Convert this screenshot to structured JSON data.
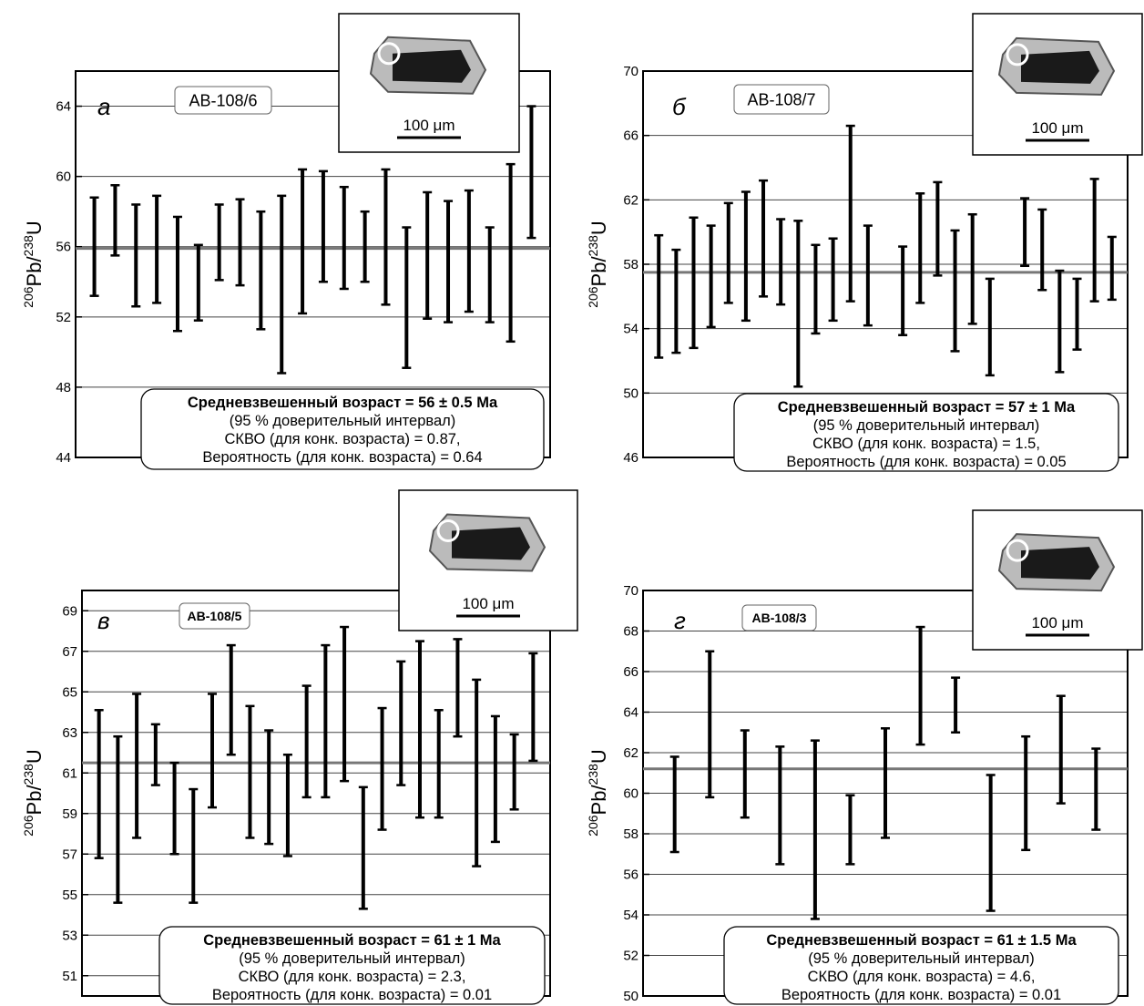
{
  "chart_data": [
    {
      "type": "range",
      "panel": "а",
      "sample": "АВ-108/6",
      "ylabel": [
        "206",
        "Pb/",
        "238",
        "U"
      ],
      "ylim": [
        44,
        66
      ],
      "yticks": [
        44,
        48,
        52,
        56,
        60,
        64
      ],
      "grid": true,
      "color": "#000000",
      "mean_color": "#777777",
      "intervals": [
        [
          53.2,
          58.8
        ],
        [
          55.5,
          59.5
        ],
        [
          52.6,
          58.4
        ],
        [
          52.8,
          58.9
        ],
        [
          51.2,
          57.7
        ],
        [
          51.8,
          56.1
        ],
        [
          54.1,
          58.4
        ],
        [
          53.8,
          58.7
        ],
        [
          51.3,
          58.0
        ],
        [
          48.8,
          58.9
        ],
        [
          52.2,
          60.4
        ],
        [
          54.0,
          60.3
        ],
        [
          53.6,
          59.4
        ],
        [
          54.0,
          58.0
        ],
        [
          52.7,
          60.4
        ],
        [
          49.1,
          57.1
        ],
        [
          51.9,
          59.1
        ],
        [
          51.7,
          58.6
        ],
        [
          52.3,
          59.2
        ],
        [
          51.7,
          57.1
        ],
        [
          50.6,
          60.7
        ],
        [
          56.5,
          64.0
        ]
      ],
      "mean": 55.9,
      "box_lines": [
        "Средневзвешенный возраст = 56 ± 0.5 Ma",
        "(95 % доверительный интервал)",
        "СКВО (для конк. возраста) = 0.87,",
        "Вероятность (для конк. возраста) = 0.64"
      ],
      "scale_label": "100 μm"
    },
    {
      "type": "range",
      "panel": "б",
      "sample": "АВ-108/7",
      "ylabel": [
        "206",
        "Pb/",
        "238",
        "U"
      ],
      "ylim": [
        46,
        70
      ],
      "yticks": [
        46,
        50,
        54,
        58,
        62,
        66,
        70
      ],
      "grid": true,
      "color": "#000000",
      "mean_color": "#777777",
      "intervals": [
        [
          52.2,
          59.8
        ],
        [
          52.5,
          58.9
        ],
        [
          52.8,
          60.9
        ],
        [
          54.1,
          60.4
        ],
        [
          55.6,
          61.8
        ],
        [
          54.5,
          62.5
        ],
        [
          56.0,
          63.2
        ],
        [
          55.5,
          60.8
        ],
        [
          50.4,
          60.7
        ],
        [
          53.7,
          59.2
        ],
        [
          54.5,
          59.6
        ],
        [
          55.7,
          66.6
        ],
        [
          54.2,
          60.4
        ],
        null,
        [
          53.6,
          59.1
        ],
        [
          55.6,
          62.4
        ],
        [
          57.3,
          63.1
        ],
        [
          52.6,
          60.1
        ],
        [
          54.3,
          61.1
        ],
        [
          51.1,
          57.1
        ],
        null,
        [
          57.9,
          62.1
        ],
        [
          56.4,
          61.4
        ],
        [
          51.3,
          57.6
        ],
        [
          52.7,
          57.1
        ],
        [
          55.7,
          63.3
        ],
        [
          55.8,
          59.7
        ]
      ],
      "mean": 57.5,
      "box_lines": [
        "Средневзвешенный возраст = 57 ± 1 Ma",
        "(95 % доверительный интервал)",
        "СКВО (для конк. возраста) = 1.5,",
        "Вероятность (для конк. возраста) = 0.05"
      ],
      "scale_label": "100 μm"
    },
    {
      "type": "range",
      "panel": "в",
      "sample": "АВ-108/5",
      "ylabel": [
        "206",
        "Pb/",
        "238",
        "U"
      ],
      "ylim": [
        50,
        70
      ],
      "yticks": [
        51,
        53,
        55,
        57,
        59,
        61,
        63,
        65,
        67,
        69
      ],
      "grid": true,
      "color": "#000000",
      "mean_color": "#777777",
      "intervals": [
        [
          56.8,
          64.1
        ],
        [
          54.6,
          62.8
        ],
        [
          57.8,
          64.9
        ],
        [
          60.4,
          63.4
        ],
        [
          57.0,
          61.5
        ],
        [
          54.6,
          60.2
        ],
        [
          59.3,
          64.9
        ],
        [
          61.9,
          67.3
        ],
        [
          57.8,
          64.3
        ],
        [
          57.5,
          63.1
        ],
        [
          56.9,
          61.9
        ],
        [
          59.8,
          65.3
        ],
        [
          59.8,
          67.3
        ],
        [
          60.6,
          68.2
        ],
        [
          54.3,
          60.3
        ],
        [
          58.2,
          64.2
        ],
        [
          60.4,
          66.5
        ],
        [
          58.8,
          67.5
        ],
        [
          58.8,
          64.1
        ],
        [
          62.8,
          67.6
        ],
        [
          56.4,
          65.6
        ],
        [
          57.6,
          63.8
        ],
        [
          59.2,
          62.9
        ],
        [
          61.6,
          66.9
        ]
      ],
      "mean": 61.5,
      "box_lines": [
        "Средневзвешенный возраст = 61 ± 1 Ma",
        "(95 % доверительный интервал)",
        "СКВО (для конк. возраста) = 2.3,",
        "Вероятность (для конк. возраста) = 0.01"
      ],
      "scale_label": "100 μm"
    },
    {
      "type": "range",
      "panel": "г",
      "sample": "АВ-108/3",
      "ylabel": [
        "206",
        "Pb/",
        "238",
        "U"
      ],
      "ylim": [
        50,
        70
      ],
      "yticks": [
        50,
        52,
        54,
        56,
        58,
        60,
        62,
        64,
        66,
        68,
        70
      ],
      "grid": true,
      "color": "#000000",
      "mean_color": "#777777",
      "intervals": [
        [
          57.1,
          61.8
        ],
        [
          59.8,
          67.0
        ],
        [
          58.8,
          63.1
        ],
        [
          56.5,
          62.3
        ],
        [
          53.8,
          62.6
        ],
        [
          56.5,
          59.9
        ],
        [
          57.8,
          63.2
        ],
        [
          62.4,
          68.2
        ],
        [
          63.0,
          65.7
        ],
        [
          54.2,
          60.9
        ],
        [
          57.2,
          62.8
        ],
        [
          59.5,
          64.8
        ],
        [
          58.2,
          62.2
        ]
      ],
      "mean": 61.2,
      "box_lines": [
        "Средневзвешенный возраст = 61 ± 1.5 Ma",
        "(95 % доверительный интервал)",
        "СКВО (для конк. возраста) = 4.6,",
        "Вероятность (для конк. возраста) = 0.01"
      ],
      "scale_label": "100 μm"
    }
  ]
}
